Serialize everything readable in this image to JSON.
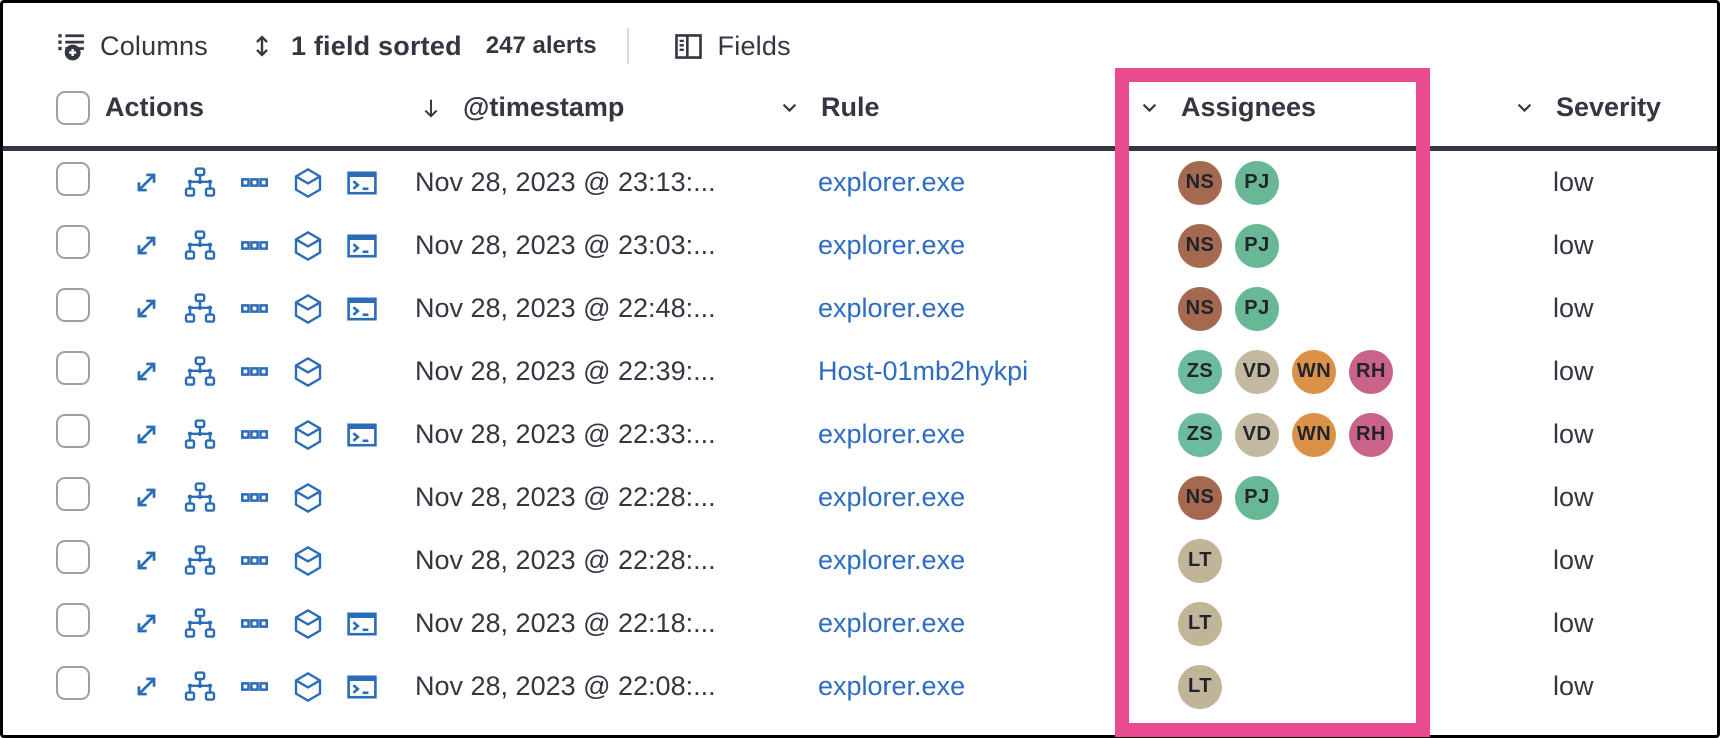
{
  "toolbar": {
    "columns": {
      "label": "Columns",
      "icon": "list-add-icon"
    },
    "sorted": {
      "label": "1 field sorted",
      "icon": "sortable-icon"
    },
    "alerts_count": "247 alerts",
    "fields": {
      "label": "Fields",
      "icon": "fields-panel-icon"
    }
  },
  "table": {
    "header": {
      "actions_label": "Actions",
      "timestamp_label": "@timestamp",
      "rule_label": "Rule",
      "assignees_label": "Assignees",
      "severity_label": "Severity",
      "sorted_column": "@timestamp",
      "sort_direction": "descending"
    },
    "row_action_icons": [
      "expand-icon",
      "process-tree-icon",
      "more-actions-icon",
      "cube-icon",
      "terminal-icon"
    ],
    "rows": [
      {
        "timestamp": "Nov 28, 2023 @ 23:13:...",
        "rule": "explorer.exe",
        "assignees": [
          "NS",
          "PJ"
        ],
        "severity": "low",
        "has_terminal": true
      },
      {
        "timestamp": "Nov 28, 2023 @ 23:03:...",
        "rule": "explorer.exe",
        "assignees": [
          "NS",
          "PJ"
        ],
        "severity": "low",
        "has_terminal": true
      },
      {
        "timestamp": "Nov 28, 2023 @ 22:48:...",
        "rule": "explorer.exe",
        "assignees": [
          "NS",
          "PJ"
        ],
        "severity": "low",
        "has_terminal": true
      },
      {
        "timestamp": "Nov 28, 2023 @ 22:39:...",
        "rule": "Host-01mb2hykpi",
        "assignees": [
          "ZS",
          "VD",
          "WN",
          "RH"
        ],
        "severity": "low",
        "has_terminal": false
      },
      {
        "timestamp": "Nov 28, 2023 @ 22:33:...",
        "rule": "explorer.exe",
        "assignees": [
          "ZS",
          "VD",
          "WN",
          "RH"
        ],
        "severity": "low",
        "has_terminal": true
      },
      {
        "timestamp": "Nov 28, 2023 @ 22:28:...",
        "rule": "explorer.exe",
        "assignees": [
          "NS",
          "PJ"
        ],
        "severity": "low",
        "has_terminal": false
      },
      {
        "timestamp": "Nov 28, 2023 @ 22:28:...",
        "rule": "explorer.exe",
        "assignees": [
          "LT"
        ],
        "severity": "low",
        "has_terminal": false
      },
      {
        "timestamp": "Nov 28, 2023 @ 22:18:...",
        "rule": "explorer.exe",
        "assignees": [
          "LT"
        ],
        "severity": "low",
        "has_terminal": true
      },
      {
        "timestamp": "Nov 28, 2023 @ 22:08:...",
        "rule": "explorer.exe",
        "assignees": [
          "LT"
        ],
        "severity": "low",
        "has_terminal": true
      }
    ]
  },
  "avatar_colors": {
    "NS": "#a5694f",
    "PJ": "#68b795",
    "ZS": "#6cbba1",
    "VD": "#c3b9a0",
    "WN": "#db9147",
    "RH": "#c96389",
    "LT": "#c0b499"
  },
  "colors": {
    "highlight_box": "#ea4a8f",
    "link_blue": "#2e6cc4",
    "action_icon_blue": "#2a6cb7",
    "text": "#343741",
    "header_underline": "#343741"
  },
  "annotation": {
    "highlighted_column": "Assignees"
  }
}
